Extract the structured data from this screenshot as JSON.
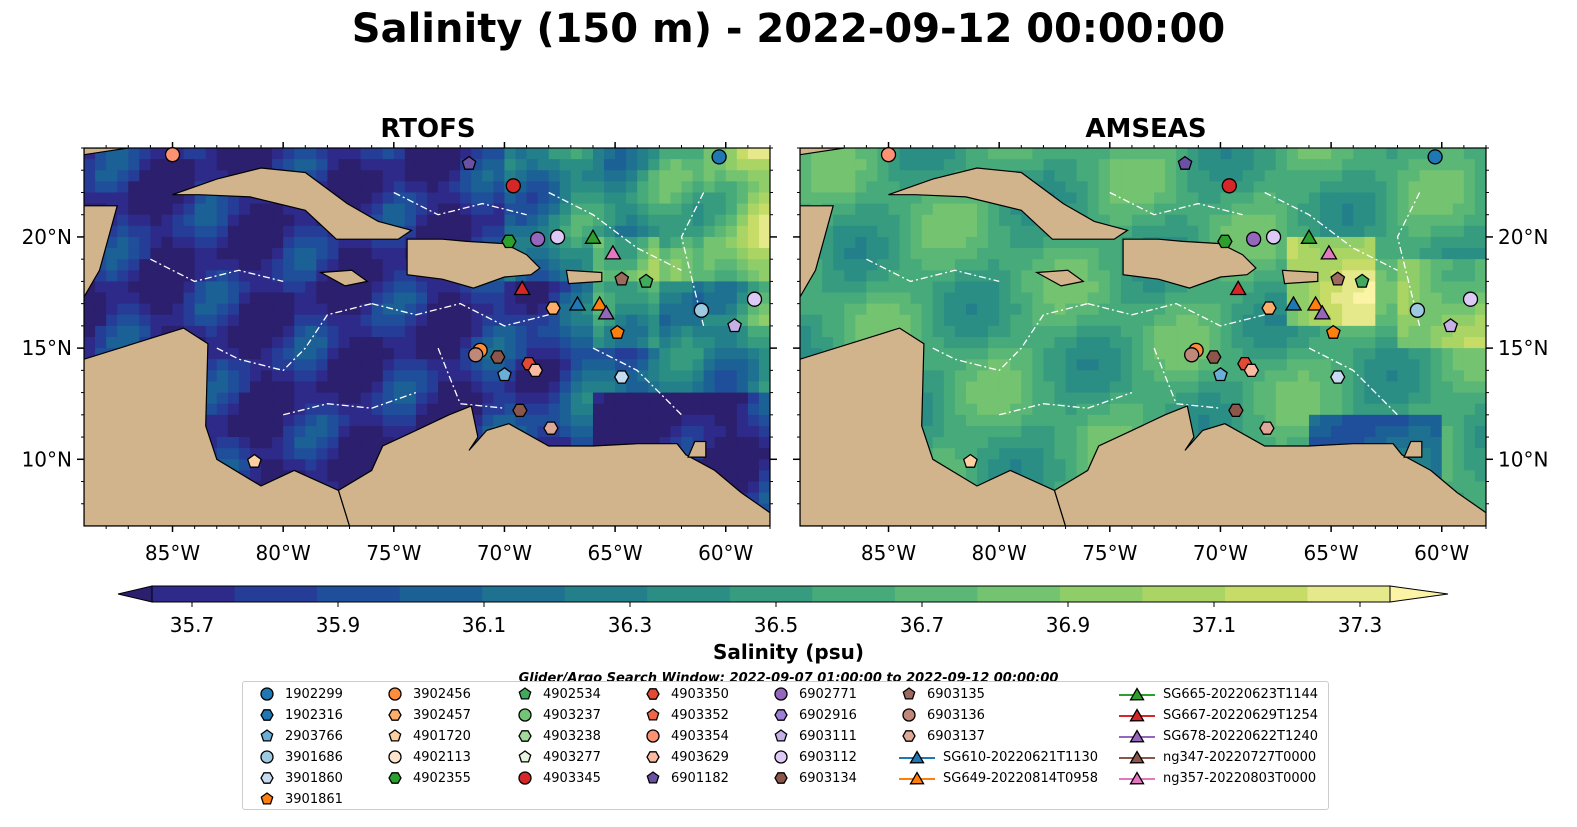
{
  "title": "Salinity (150 m) - 2022-09-12 00:00:00",
  "panels": [
    {
      "title": "RTOFS"
    },
    {
      "title": "AMSEAS"
    }
  ],
  "axes": {
    "lon_ticks": [
      "85°W",
      "80°W",
      "75°W",
      "70°W",
      "65°W",
      "60°W"
    ],
    "lat_ticks": [
      "20°N",
      "15°N",
      "10°N"
    ]
  },
  "colorbar": {
    "label": "Salinity (psu)",
    "tick_labels": [
      "35.7",
      "35.9",
      "36.1",
      "36.3",
      "36.5",
      "36.7",
      "36.9",
      "37.1",
      "37.3"
    ],
    "colors": [
      "#2b1f6e",
      "#2e2a8a",
      "#263d98",
      "#1f4f9a",
      "#1b6196",
      "#1e7191",
      "#23808b",
      "#2b8e85",
      "#379c7f",
      "#47aa7a",
      "#5ab776",
      "#73c370",
      "#8fcd69",
      "#aad464",
      "#c6dc67",
      "#e6e98b",
      "#fbf3a6"
    ]
  },
  "search_window": "Glider/Argo Search Window: 2022-09-07 01:00:00 to 2022-09-12 00:00:00",
  "legend": [
    {
      "label": "1902299",
      "marker": "circle",
      "color": "#1f77b4"
    },
    {
      "label": "1902316",
      "marker": "hexagon",
      "color": "#1f77b4"
    },
    {
      "label": "2903766",
      "marker": "pentagon",
      "color": "#6baed6"
    },
    {
      "label": "3901686",
      "marker": "circle",
      "color": "#9ecae1"
    },
    {
      "label": "3901860",
      "marker": "hexagon",
      "color": "#c6dbef"
    },
    {
      "label": "3901861",
      "marker": "pentagon",
      "color": "#ff7f0e"
    },
    {
      "label": "3902456",
      "marker": "circle",
      "color": "#fd8d3c"
    },
    {
      "label": "3902457",
      "marker": "hexagon",
      "color": "#fdae6b"
    },
    {
      "label": "4901720",
      "marker": "pentagon",
      "color": "#fdd0a2"
    },
    {
      "label": "4902113",
      "marker": "circle",
      "color": "#fee6ce"
    },
    {
      "label": "4902355",
      "marker": "hexagon",
      "color": "#2ca02c"
    },
    {
      "label": "4902534",
      "marker": "pentagon",
      "color": "#41ab5d"
    },
    {
      "label": "4903237",
      "marker": "circle",
      "color": "#74c476"
    },
    {
      "label": "4903238",
      "marker": "hexagon",
      "color": "#a1d99b"
    },
    {
      "label": "4903277",
      "marker": "pentagon",
      "color": "#e5f5e0"
    },
    {
      "label": "4903345",
      "marker": "circle",
      "color": "#d62728"
    },
    {
      "label": "4903350",
      "marker": "hexagon",
      "color": "#e34a33"
    },
    {
      "label": "4903352",
      "marker": "pentagon",
      "color": "#ef6548"
    },
    {
      "label": "4903354",
      "marker": "circle",
      "color": "#fc9272"
    },
    {
      "label": "4903629",
      "marker": "hexagon",
      "color": "#fcbba1"
    },
    {
      "label": "6901182",
      "marker": "pentagon",
      "color": "#6a51a3"
    },
    {
      "label": "6902771",
      "marker": "circle",
      "color": "#9467bd"
    },
    {
      "label": "6902916",
      "marker": "hexagon",
      "color": "#9e7fd6"
    },
    {
      "label": "6903111",
      "marker": "pentagon",
      "color": "#c5b0e8"
    },
    {
      "label": "6903112",
      "marker": "circle",
      "color": "#dcc9f5"
    },
    {
      "label": "6903134",
      "marker": "hexagon",
      "color": "#8c564b"
    },
    {
      "label": "6903135",
      "marker": "pentagon",
      "color": "#9c6a5e"
    },
    {
      "label": "6903136",
      "marker": "circle",
      "color": "#c08878"
    },
    {
      "label": "6903137",
      "marker": "hexagon",
      "color": "#e0a896"
    },
    {
      "label": "SG610-20220621T1130",
      "marker": "triangle",
      "color": "#1f77b4",
      "line": true
    },
    {
      "label": "SG649-20220814T0958",
      "marker": "triangle",
      "color": "#ff7f0e",
      "line": true
    },
    {
      "label": "SG665-20220623T1144",
      "marker": "triangle",
      "color": "#2ca02c",
      "line": true
    },
    {
      "label": "SG667-20220629T1254",
      "marker": "triangle",
      "color": "#d62728",
      "line": true
    },
    {
      "label": "SG678-20220622T1240",
      "marker": "triangle",
      "color": "#9467bd",
      "line": true
    },
    {
      "label": "ng347-20220727T0000",
      "marker": "triangle",
      "color": "#8c564b",
      "line": true
    },
    {
      "label": "ng357-20220803T0000",
      "marker": "triangle",
      "color": "#e377c2",
      "line": true
    }
  ],
  "chart_data": {
    "type": "map",
    "variable": "Salinity",
    "depth_m": 150,
    "time": "2022-09-12 00:00:00",
    "units": "psu",
    "extent": {
      "lon": [
        -89,
        -58
      ],
      "lat": [
        7,
        24
      ]
    },
    "clim": [
      35.6,
      37.4
    ],
    "observations": [
      {
        "id": "1902299",
        "lon": -60.3,
        "lat": 23.6
      },
      {
        "id": "2903766",
        "lon": -85.0,
        "lat": 23.7
      },
      {
        "id": "4903354",
        "lon": -85.0,
        "lat": 23.7
      },
      {
        "id": "4903345",
        "lon": -69.6,
        "lat": 22.3
      },
      {
        "id": "6901182",
        "lon": -71.6,
        "lat": 23.3
      },
      {
        "id": "4902355",
        "lon": -69.8,
        "lat": 19.8
      },
      {
        "id": "6902771",
        "lon": -68.5,
        "lat": 19.9
      },
      {
        "id": "6903112",
        "lon": -67.6,
        "lat": 20.0
      },
      {
        "id": "SG665-20220623T1144",
        "lon": -66.0,
        "lat": 20.0
      },
      {
        "id": "ng357-20220803T0000",
        "lon": -65.1,
        "lat": 19.3
      },
      {
        "id": "6903135",
        "lon": -64.7,
        "lat": 18.1
      },
      {
        "id": "4902534",
        "lon": -63.6,
        "lat": 18.0
      },
      {
        "id": "SG667-20220629T1254",
        "lon": -69.2,
        "lat": 17.7
      },
      {
        "id": "3902457",
        "lon": -67.8,
        "lat": 16.8
      },
      {
        "id": "SG610-20220621T1130",
        "lon": -66.7,
        "lat": 17.0
      },
      {
        "id": "SG649-20220814T0958",
        "lon": -65.7,
        "lat": 17.0
      },
      {
        "id": "SG678-20220622T1240",
        "lon": -65.4,
        "lat": 16.6
      },
      {
        "id": "3901861",
        "lon": -64.9,
        "lat": 15.7
      },
      {
        "id": "3901686",
        "lon": -61.1,
        "lat": 16.7
      },
      {
        "id": "6903111",
        "lon": -59.6,
        "lat": 16.0
      },
      {
        "id": "6903112b",
        "lon": -58.7,
        "lat": 17.2
      },
      {
        "id": "3902456",
        "lon": -71.1,
        "lat": 14.9
      },
      {
        "id": "6903136",
        "lon": -71.3,
        "lat": 14.7
      },
      {
        "id": "6903134",
        "lon": -70.3,
        "lat": 14.6
      },
      {
        "id": "4903350",
        "lon": -68.9,
        "lat": 14.3
      },
      {
        "id": "4903629",
        "lon": -68.6,
        "lat": 14.0
      },
      {
        "id": "3901860",
        "lon": -64.7,
        "lat": 13.7
      },
      {
        "id": "2903766b",
        "lon": -70.0,
        "lat": 13.8
      },
      {
        "id": "6903134b",
        "lon": -69.3,
        "lat": 12.2
      },
      {
        "id": "6903137",
        "lon": -67.9,
        "lat": 11.4
      },
      {
        "id": "4901720",
        "lon": -81.3,
        "lat": 9.9
      }
    ]
  }
}
